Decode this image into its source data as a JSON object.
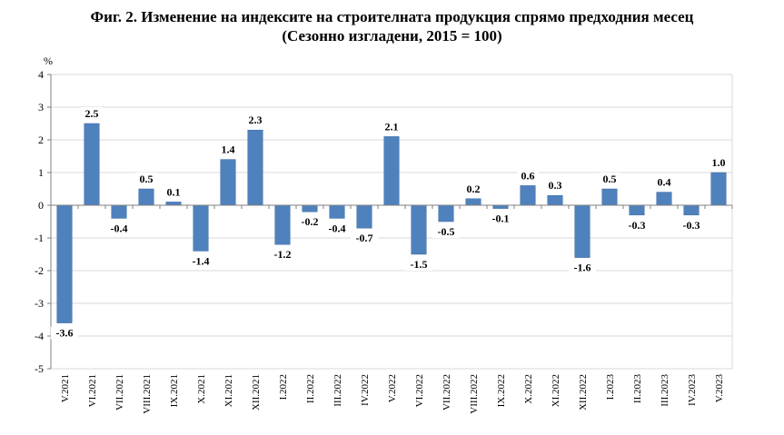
{
  "title": {
    "line1": "Фиг. 2. Изменение на индексите на строителната продукция спрямо предходния месец",
    "line2": "(Сезонно изгладени, 2015 = 100)"
  },
  "colors": {
    "bar": "#4f81bd",
    "bar_stroke": "#3a6aa3",
    "grid": "#d9d9d9",
    "axis": "#808080"
  },
  "chart_data": {
    "type": "bar",
    "title": "Фиг. 2. Изменение на индексите на строителната продукция спрямо предходния месец (Сезонно изгладени, 2015 = 100)",
    "ylabel": "%",
    "xlabel": "",
    "ylim": [
      -5,
      4
    ],
    "yticks": [
      4,
      3,
      2,
      1,
      0,
      -1,
      -2,
      -3,
      -4,
      -5
    ],
    "grid": true,
    "legend": "none",
    "categories": [
      "V.2021",
      "VI.2021",
      "VII.2021",
      "VIII.2021",
      "IX.2021",
      "X.2021",
      "XI.2021",
      "XII.2021",
      "I.2022",
      "II.2022",
      "III.2022",
      "IV.2022",
      "V.2022",
      "VI.2022",
      "VII.2022",
      "VIII.2022",
      "IX.2022",
      "X.2022",
      "XI.2022",
      "XII.2022",
      "I.2023",
      "II.2023",
      "III.2023",
      "IV.2023",
      "V.2023"
    ],
    "values": [
      -3.6,
      2.5,
      -0.4,
      0.5,
      0.1,
      -1.4,
      1.4,
      2.3,
      -1.2,
      -0.2,
      -0.4,
      -0.7,
      2.1,
      -1.5,
      -0.5,
      0.2,
      -0.1,
      0.6,
      0.3,
      -1.6,
      0.5,
      -0.3,
      0.4,
      -0.3,
      1.0
    ],
    "labels": [
      "-3.6",
      "2.5",
      "-0.4",
      "0.5",
      "0.1",
      "-1.4",
      "1.4",
      "2.3",
      "-1.2",
      "-0.2",
      "-0.4",
      "-0.7",
      "2.1",
      "-1.5",
      "-0.5",
      "0.2",
      "-0.1",
      "0.6",
      "0.3",
      "-1.6",
      "0.5",
      "-0.3",
      "0.4",
      "-0.3",
      "1.0"
    ]
  }
}
